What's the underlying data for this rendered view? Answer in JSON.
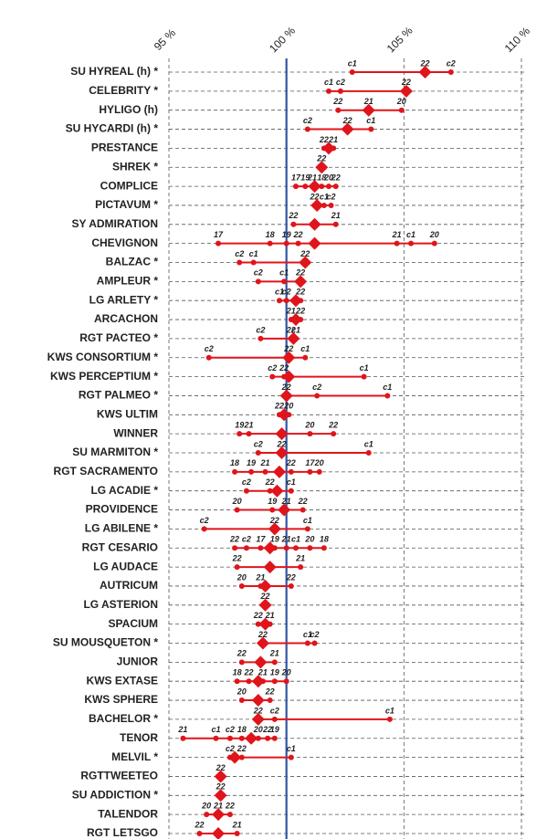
{
  "chart_data": {
    "type": "dot",
    "color": "#e0141b",
    "reference": 100,
    "reference_color": "#2f55a4",
    "xlim": [
      95,
      110
    ],
    "xticks": [
      {
        "value": 95,
        "label": "95 %"
      },
      {
        "value": 100,
        "label": "100 %"
      },
      {
        "value": 105,
        "label": "105 %"
      },
      {
        "value": 110,
        "label": "110 %"
      }
    ],
    "rows": [
      {
        "name": "SU HYREAL (h) *",
        "mean": 105.9,
        "points": [
          {
            "label": "c1",
            "value": 102.8
          },
          {
            "label": "22",
            "value": 105.9
          },
          {
            "label": "c2",
            "value": 107.0
          }
        ]
      },
      {
        "name": "CELEBRITY *",
        "mean": 105.1,
        "points": [
          {
            "label": "c1",
            "value": 101.8
          },
          {
            "label": "c2",
            "value": 102.3
          },
          {
            "label": "22",
            "value": 105.1
          }
        ]
      },
      {
        "name": "HYLIGO (h)",
        "mean": 103.5,
        "points": [
          {
            "label": "22",
            "value": 102.2
          },
          {
            "label": "21",
            "value": 103.5
          },
          {
            "label": "20",
            "value": 104.9
          }
        ]
      },
      {
        "name": "SU HYCARDI (h) *",
        "mean": 102.6,
        "points": [
          {
            "label": "c2",
            "value": 100.9
          },
          {
            "label": "22",
            "value": 102.6
          },
          {
            "label": "c1",
            "value": 103.6
          }
        ]
      },
      {
        "name": "PRESTANCE",
        "mean": 101.8,
        "points": [
          {
            "label": "22",
            "value": 101.6
          },
          {
            "label": "21",
            "value": 102.0
          }
        ]
      },
      {
        "name": "SHREK *",
        "mean": 101.5,
        "points": [
          {
            "label": "22",
            "value": 101.5
          }
        ]
      },
      {
        "name": "COMPLICE",
        "mean": 101.2,
        "points": [
          {
            "label": "17",
            "value": 100.4
          },
          {
            "label": "19",
            "value": 100.8
          },
          {
            "label": "21",
            "value": 101.1
          },
          {
            "label": "18",
            "value": 101.5
          },
          {
            "label": "20",
            "value": 101.8
          },
          {
            "label": "22",
            "value": 102.1
          }
        ]
      },
      {
        "name": "PICTAVUM *",
        "mean": 101.3,
        "points": [
          {
            "label": "22",
            "value": 101.2
          },
          {
            "label": "c1",
            "value": 101.6
          },
          {
            "label": "c2",
            "value": 101.9
          }
        ]
      },
      {
        "name": "SY ADMIRATION",
        "mean": 101.2,
        "points": [
          {
            "label": "22",
            "value": 100.3
          },
          {
            "label": "21",
            "value": 102.1
          }
        ]
      },
      {
        "name": "CHEVIGNON",
        "mean": 101.2,
        "points": [
          {
            "label": "17",
            "value": 97.1
          },
          {
            "label": "18",
            "value": 99.3
          },
          {
            "label": "19",
            "value": 100.0
          },
          {
            "label": "22",
            "value": 100.5
          },
          {
            "label": "21",
            "value": 104.7
          },
          {
            "label": "c1",
            "value": 105.3
          },
          {
            "label": "20",
            "value": 106.3
          }
        ]
      },
      {
        "name": "BALZAC *",
        "mean": 100.8,
        "points": [
          {
            "label": "c2",
            "value": 98.0
          },
          {
            "label": "c1",
            "value": 98.6
          },
          {
            "label": "22",
            "value": 100.8
          }
        ]
      },
      {
        "name": "AMPLEUR *",
        "mean": 100.6,
        "points": [
          {
            "label": "c2",
            "value": 98.8
          },
          {
            "label": "c1",
            "value": 99.9
          },
          {
            "label": "22",
            "value": 100.6
          }
        ]
      },
      {
        "name": "LG ARLETY *",
        "mean": 100.4,
        "points": [
          {
            "label": "c1",
            "value": 99.7
          },
          {
            "label": "c2",
            "value": 100.0
          },
          {
            "label": "22",
            "value": 100.6
          }
        ]
      },
      {
        "name": "ARCACHON",
        "mean": 100.4,
        "points": [
          {
            "label": "21",
            "value": 100.2
          },
          {
            "label": "22",
            "value": 100.6
          }
        ]
      },
      {
        "name": "RGT PACTEO *",
        "mean": 100.3,
        "points": [
          {
            "label": "c2",
            "value": 98.9
          },
          {
            "label": "22",
            "value": 100.2
          },
          {
            "label": "c1",
            "value": 100.4
          }
        ]
      },
      {
        "name": "KWS CONSORTIUM *",
        "mean": 100.1,
        "points": [
          {
            "label": "c2",
            "value": 96.7
          },
          {
            "label": "22",
            "value": 100.1
          },
          {
            "label": "c1",
            "value": 100.8
          }
        ]
      },
      {
        "name": "KWS PERCEPTIUM *",
        "mean": 100.1,
        "points": [
          {
            "label": "c2",
            "value": 99.4
          },
          {
            "label": "22",
            "value": 99.9
          },
          {
            "label": "c1",
            "value": 103.3
          }
        ]
      },
      {
        "name": "RGT PALMEO *",
        "mean": 100.0,
        "points": [
          {
            "label": "22",
            "value": 100.0
          },
          {
            "label": "c2",
            "value": 101.3
          },
          {
            "label": "c1",
            "value": 104.3
          }
        ]
      },
      {
        "name": "KWS ULTIM",
        "mean": 99.9,
        "points": [
          {
            "label": "22",
            "value": 99.7
          },
          {
            "label": "20",
            "value": 100.1
          }
        ]
      },
      {
        "name": "WINNER",
        "mean": 99.8,
        "points": [
          {
            "label": "19",
            "value": 98.0
          },
          {
            "label": "21",
            "value": 98.4
          },
          {
            "label": "20",
            "value": 101.0
          },
          {
            "label": "22",
            "value": 102.0
          }
        ]
      },
      {
        "name": "SU MARMITON *",
        "mean": 99.8,
        "points": [
          {
            "label": "c2",
            "value": 98.8
          },
          {
            "label": "22",
            "value": 99.8
          },
          {
            "label": "c1",
            "value": 103.5
          }
        ]
      },
      {
        "name": "RGT SACRAMENTO",
        "mean": 99.7,
        "points": [
          {
            "label": "18",
            "value": 97.8
          },
          {
            "label": "19",
            "value": 98.5
          },
          {
            "label": "21",
            "value": 99.1
          },
          {
            "label": "22",
            "value": 100.2
          },
          {
            "label": "17",
            "value": 101.0
          },
          {
            "label": "20",
            "value": 101.4
          }
        ]
      },
      {
        "name": "LG ACADIE *",
        "mean": 99.6,
        "points": [
          {
            "label": "c2",
            "value": 98.3
          },
          {
            "label": "22",
            "value": 99.3
          },
          {
            "label": "c1",
            "value": 100.2
          }
        ]
      },
      {
        "name": "PROVIDENCE",
        "mean": 99.9,
        "points": [
          {
            "label": "20",
            "value": 97.9
          },
          {
            "label": "19",
            "value": 99.4
          },
          {
            "label": "21",
            "value": 100.0
          },
          {
            "label": "22",
            "value": 100.7
          }
        ]
      },
      {
        "name": "LG ABILENE *",
        "mean": 99.5,
        "points": [
          {
            "label": "c2",
            "value": 96.5
          },
          {
            "label": "22",
            "value": 99.5
          },
          {
            "label": "c1",
            "value": 100.9
          }
        ]
      },
      {
        "name": "RGT CESARIO",
        "mean": 99.3,
        "points": [
          {
            "label": "22",
            "value": 97.8
          },
          {
            "label": "c2",
            "value": 98.3
          },
          {
            "label": "17",
            "value": 98.9
          },
          {
            "label": "19",
            "value": 99.5
          },
          {
            "label": "21",
            "value": 100.0
          },
          {
            "label": "c1",
            "value": 100.4
          },
          {
            "label": "20",
            "value": 101.0
          },
          {
            "label": "18",
            "value": 101.6
          }
        ]
      },
      {
        "name": "LG AUDACE",
        "mean": 99.3,
        "points": [
          {
            "label": "22",
            "value": 97.9
          },
          {
            "label": "21",
            "value": 100.6
          }
        ]
      },
      {
        "name": "AUTRICUM",
        "mean": 99.1,
        "points": [
          {
            "label": "20",
            "value": 98.1
          },
          {
            "label": "21",
            "value": 98.9
          },
          {
            "label": "22",
            "value": 100.2
          }
        ]
      },
      {
        "name": "LG ASTERION",
        "mean": 99.1,
        "points": [
          {
            "label": "22",
            "value": 99.1
          }
        ]
      },
      {
        "name": "SPACIUM",
        "mean": 99.1,
        "points": [
          {
            "label": "22",
            "value": 98.8
          },
          {
            "label": "21",
            "value": 99.3
          }
        ]
      },
      {
        "name": "SU MOUSQUETON *",
        "mean": 99.0,
        "points": [
          {
            "label": "22",
            "value": 99.0
          },
          {
            "label": "c1",
            "value": 100.9
          },
          {
            "label": "c2",
            "value": 101.2
          }
        ]
      },
      {
        "name": "JUNIOR",
        "mean": 98.9,
        "points": [
          {
            "label": "22",
            "value": 98.1
          },
          {
            "label": "21",
            "value": 99.5
          }
        ]
      },
      {
        "name": "KWS EXTASE",
        "mean": 98.8,
        "points": [
          {
            "label": "18",
            "value": 97.9
          },
          {
            "label": "22",
            "value": 98.4
          },
          {
            "label": "21",
            "value": 99.0
          },
          {
            "label": "19",
            "value": 99.5
          },
          {
            "label": "20",
            "value": 100.0
          }
        ]
      },
      {
        "name": "KWS SPHERE",
        "mean": 98.8,
        "points": [
          {
            "label": "20",
            "value": 98.1
          },
          {
            "label": "22",
            "value": 99.3
          }
        ]
      },
      {
        "name": "BACHELOR *",
        "mean": 98.8,
        "points": [
          {
            "label": "22",
            "value": 98.8
          },
          {
            "label": "c2",
            "value": 99.5
          },
          {
            "label": "c1",
            "value": 104.4
          }
        ]
      },
      {
        "name": "TENOR",
        "mean": 98.5,
        "points": [
          {
            "label": "21",
            "value": 95.6
          },
          {
            "label": "c1",
            "value": 97.0
          },
          {
            "label": "c2",
            "value": 97.6
          },
          {
            "label": "18",
            "value": 98.1
          },
          {
            "label": "20",
            "value": 98.8
          },
          {
            "label": "22",
            "value": 99.2
          },
          {
            "label": "19",
            "value": 99.5
          }
        ]
      },
      {
        "name": "MELVIL *",
        "mean": 97.8,
        "points": [
          {
            "label": "c2",
            "value": 97.6
          },
          {
            "label": "22",
            "value": 98.1
          },
          {
            "label": "c1",
            "value": 100.2
          }
        ]
      },
      {
        "name": "RGTTWEETEO",
        "mean": 97.2,
        "points": [
          {
            "label": "22",
            "value": 97.2
          }
        ]
      },
      {
        "name": "SU ADDICTION *",
        "mean": 97.2,
        "points": [
          {
            "label": "22",
            "value": 97.2
          }
        ]
      },
      {
        "name": "TALENDOR",
        "mean": 97.1,
        "points": [
          {
            "label": "20",
            "value": 96.6
          },
          {
            "label": "21",
            "value": 97.1
          },
          {
            "label": "22",
            "value": 97.6
          }
        ]
      },
      {
        "name": "RGT LETSGO",
        "mean": 97.1,
        "points": [
          {
            "label": "22",
            "value": 96.3
          },
          {
            "label": "21",
            "value": 97.9
          }
        ]
      }
    ]
  }
}
